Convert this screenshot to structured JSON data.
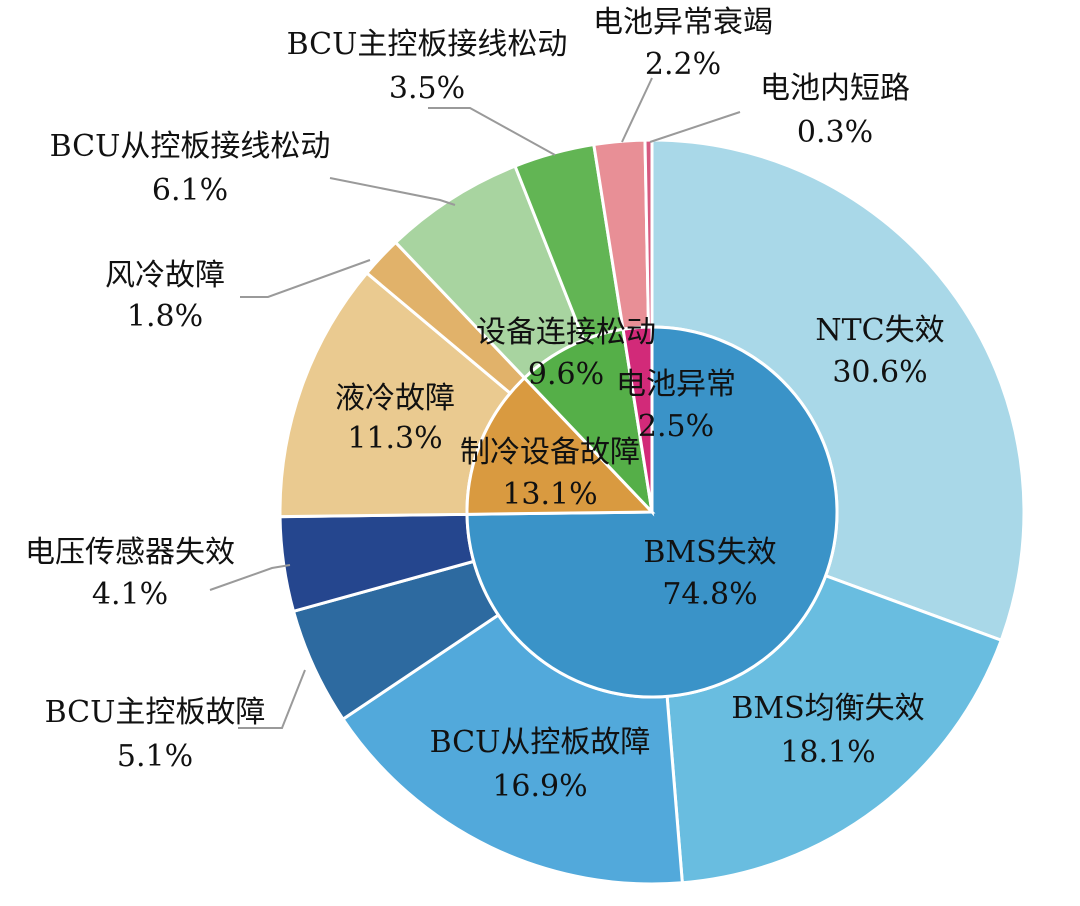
{
  "chart_data": {
    "type": "pie",
    "variant": "nested-donut",
    "inner": [
      {
        "name": "BMS失效",
        "value": 74.8,
        "label": "74.8%",
        "color": "#3a93c8"
      },
      {
        "name": "制冷设备故障",
        "value": 13.1,
        "label": "13.1%",
        "color": "#d99a40"
      },
      {
        "name": "设备连接松动",
        "value": 9.6,
        "label": "9.6%",
        "color": "#55af48"
      },
      {
        "name": "电池异常",
        "value": 2.5,
        "label": "2.5%",
        "color": "#d22a79"
      }
    ],
    "outer": [
      {
        "name": "NTC失效",
        "value": 30.6,
        "label": "30.6%",
        "color": "#a9d8e8"
      },
      {
        "name": "BMS均衡失效",
        "value": 18.1,
        "label": "18.1%",
        "color": "#69bde0"
      },
      {
        "name": "BCU从控板故障",
        "value": 16.9,
        "label": "16.9%",
        "color": "#52a9db"
      },
      {
        "name": "BCU主控板故障",
        "value": 5.1,
        "label": "5.1%",
        "color": "#2d6aa0"
      },
      {
        "name": "电压传感器失效",
        "value": 4.1,
        "label": "4.1%",
        "color": "#25468e"
      },
      {
        "name": "液冷故障",
        "value": 11.3,
        "label": "11.3%",
        "color": "#eaca90"
      },
      {
        "name": "风冷故障",
        "value": 1.8,
        "label": "1.8%",
        "color": "#e1b26a"
      },
      {
        "name": "BCU从控板接线松动",
        "value": 6.1,
        "label": "6.1%",
        "color": "#a8d4a0"
      },
      {
        "name": "BCU主控板接线松动",
        "value": 3.5,
        "label": "3.5%",
        "color": "#62b554"
      },
      {
        "name": "电池异常衰竭",
        "value": 2.2,
        "label": "2.2%",
        "color": "#e88f96"
      },
      {
        "name": "电池内短路",
        "value": 0.3,
        "label": "0.3%",
        "color": "#d65a80"
      }
    ]
  }
}
